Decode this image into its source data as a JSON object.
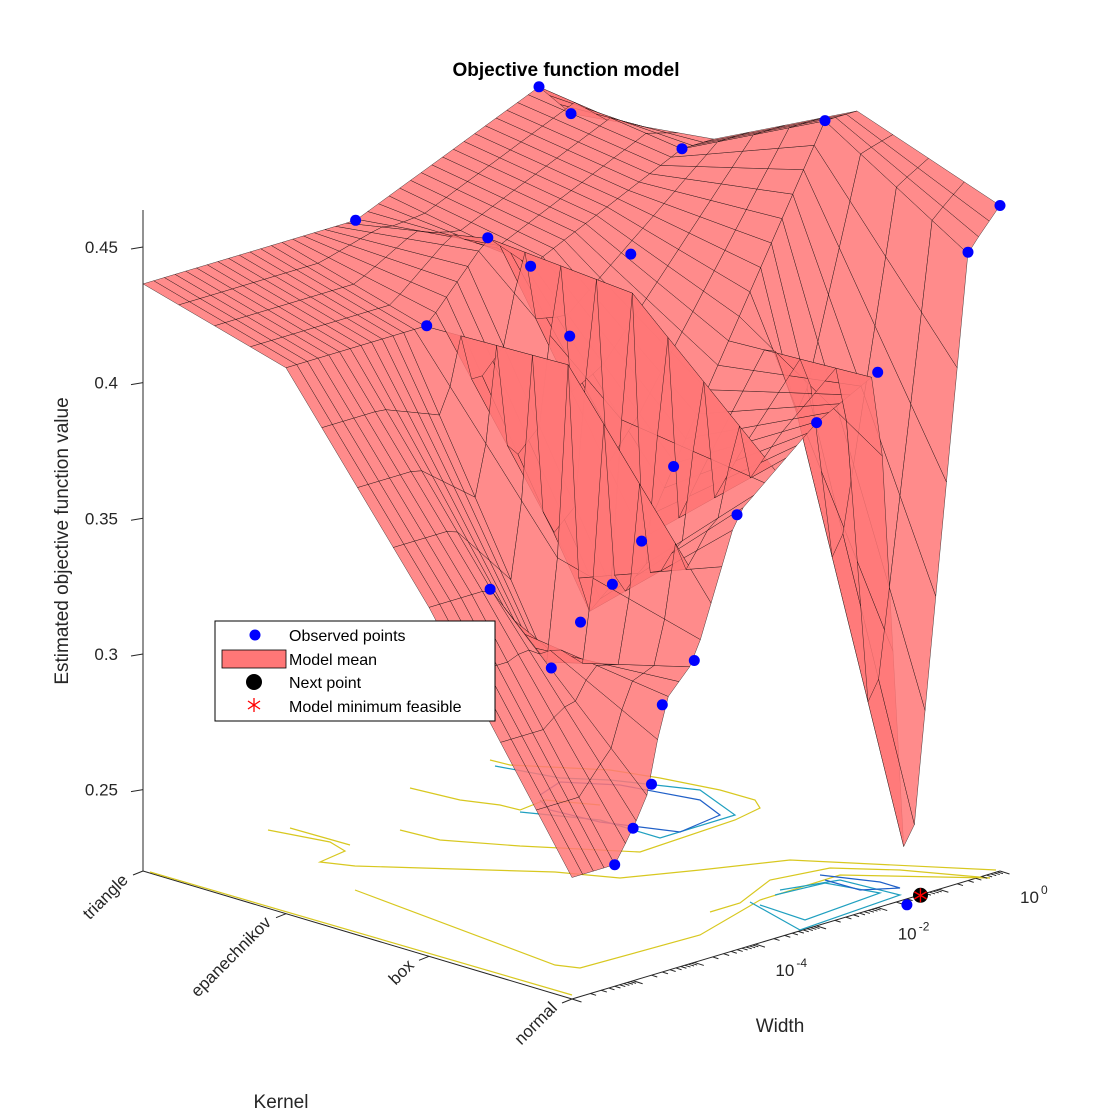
{
  "chart_data": {
    "type": "surface3d",
    "title": "Objective function model",
    "xlabel": "Kernel",
    "ylabel": "Width",
    "zlabel": "Estimated objective function value",
    "x_categories": [
      "triangle",
      "epanechnikov",
      "box",
      "normal"
    ],
    "y_scale": "log",
    "y_ticks": [
      {
        "base": "10",
        "exp": "-4",
        "value": 0.0001
      },
      {
        "base": "10",
        "exp": "-2",
        "value": 0.01
      },
      {
        "base": "10",
        "exp": "0",
        "value": 1
      }
    ],
    "z_ticks": [
      "0.25",
      "0.3",
      "0.35",
      "0.4",
      "0.45"
    ],
    "z_range": [
      0.22,
      0.465
    ],
    "legend": {
      "placement": "center-left",
      "entries": [
        "Observed points",
        "Model mean",
        "Next point",
        "Model minimum feasible"
      ]
    },
    "colors": {
      "surface_fill": "#ff7777",
      "surface_edge": "#000000",
      "observed": "#0000ff",
      "next_point": "#000000",
      "model_min": "#ff0000",
      "contours": [
        "#2060c8",
        "#20a0c0",
        "#d8c820"
      ]
    },
    "observed_points": [
      {
        "kernel": "triangle",
        "width": 1.0,
        "value": 0.452
      },
      {
        "kernel": "triangle",
        "width": 0.3,
        "value": 0.4654
      },
      {
        "kernel": "triangle",
        "width": 0.0003,
        "value": 0.4364
      },
      {
        "kernel": "epanechnikov",
        "width": 0.3,
        "value": 0.4583
      },
      {
        "kernel": "epanechnikov",
        "width": 0.0002,
        "value": 0.4469
      },
      {
        "kernel": "epanechnikov",
        "width": 2e-05,
        "value": 0.4212
      },
      {
        "kernel": "box",
        "width": 0.3,
        "value": 0.4844
      },
      {
        "kernel": "box",
        "width": 0.0002,
        "value": 0.4566
      },
      {
        "kernel": "box",
        "width": 2e-05,
        "value": 0.4331
      },
      {
        "kernel": "box",
        "width": 1e-06,
        "value": 0.3486
      },
      {
        "kernel": "normal",
        "width": 1.0,
        "value": 0.4653
      },
      {
        "kernel": "normal",
        "width": 0.3,
        "value": 0.4516
      },
      {
        "kernel": "normal",
        "width": 0.01,
        "value": 0.4173
      },
      {
        "kernel": "normal",
        "width": 0.001,
        "value": 0.4055
      },
      {
        "kernel": "normal",
        "width": 5e-05,
        "value": 0.3803
      },
      {
        "kernel": "normal",
        "width": 1e-05,
        "value": 0.3313
      },
      {
        "kernel": "normal",
        "width": 3e-06,
        "value": 0.3185
      },
      {
        "kernel": "normal",
        "width": 2e-06,
        "value": 0.2904
      },
      {
        "kernel": "normal",
        "width": 1e-06,
        "value": 0.2762
      },
      {
        "kernel": "normal",
        "width": 5e-07,
        "value": 0.2648
      },
      {
        "kernel": "normal",
        "width": 0.03,
        "value": 0.2178
      },
      {
        "kernel": "box",
        "width": 0.001,
        "value": 0.3736
      },
      {
        "kernel": "box",
        "width": 0.0003,
        "value": 0.3496
      },
      {
        "kernel": "box",
        "width": 0.0001,
        "value": 0.3369
      },
      {
        "kernel": "box",
        "width": 3e-05,
        "value": 0.3265
      },
      {
        "kernel": "box",
        "width": 1e-05,
        "value": 0.3128
      },
      {
        "kernel": "epanechnikov",
        "width": 0.001,
        "value": 0.4317
      }
    ],
    "next_point": {
      "kernel": "normal",
      "width": 0.05,
      "value": 0.2198
    },
    "model_minimum_feasible": {
      "kernel": "normal",
      "width": 0.05,
      "value": 0.2198
    }
  }
}
